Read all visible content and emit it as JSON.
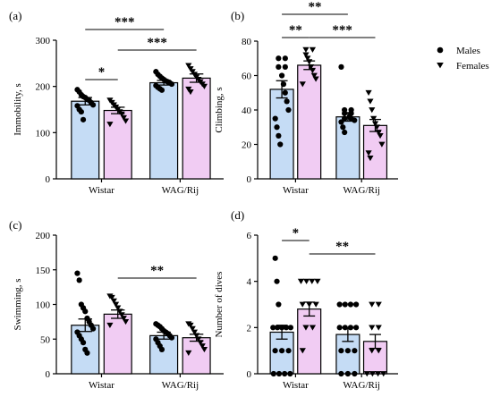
{
  "colors": {
    "male": "#c5dcf5",
    "female": "#f1ccf3",
    "outline": "#000000"
  },
  "legend": [
    {
      "label": "Males",
      "marker": "circle"
    },
    {
      "label": "Females",
      "marker": "triangle-down"
    }
  ],
  "groups": [
    "Wistar",
    "WAG/Rij"
  ],
  "chart_data": [
    {
      "panel": "(a)",
      "type": "bar",
      "ylabel": "Immobility, s",
      "ylim": [
        0,
        300
      ],
      "yticks": [
        0,
        100,
        200,
        300
      ],
      "categories": [
        "Wistar",
        "WAG/Rij"
      ],
      "series": [
        {
          "name": "Males",
          "values": [
            168,
            208
          ],
          "sem": [
            8,
            5
          ]
        },
        {
          "name": "Females",
          "values": [
            148,
            218
          ],
          "sem": [
            7,
            9
          ]
        }
      ],
      "points": {
        "Males": [
          [
            193,
            188,
            182,
            178,
            176,
            172,
            170,
            165,
            160,
            158,
            150,
            145,
            128
          ],
          [
            232,
            226,
            222,
            218,
            215,
            212,
            210,
            208,
            205,
            202,
            198,
            195,
            192
          ]
        ],
        "Females": [
          [
            170,
            165,
            160,
            155,
            150,
            145,
            140,
            132,
            125,
            118
          ],
          [
            245,
            238,
            232,
            226,
            220,
            215,
            210,
            205,
            200,
            194,
            188
          ]
        ]
      },
      "significance": [
        {
          "label": "*",
          "from": [
            0,
            0
          ],
          "to": [
            0,
            1
          ],
          "level": "low"
        },
        {
          "label": "***",
          "from": [
            0,
            0
          ],
          "to": [
            1,
            0
          ],
          "level": "top"
        },
        {
          "label": "***",
          "from": [
            0,
            1
          ],
          "to": [
            1,
            1
          ],
          "level": "mid"
        }
      ]
    },
    {
      "panel": "(b)",
      "type": "bar",
      "ylabel": "Climbing, s",
      "ylim": [
        0,
        80
      ],
      "yticks": [
        0,
        20,
        40,
        60,
        80
      ],
      "categories": [
        "Wistar",
        "WAG/Rij"
      ],
      "series": [
        {
          "name": "Males",
          "values": [
            52,
            36
          ],
          "sem": [
            5,
            2.5
          ]
        },
        {
          "name": "Females",
          "values": [
            66,
            31
          ],
          "sem": [
            2.5,
            3.5
          ]
        }
      ],
      "points": {
        "Males": [
          [
            70,
            70,
            65,
            65,
            60,
            55,
            50,
            45,
            40,
            35,
            30,
            25,
            20
          ],
          [
            65,
            40,
            40,
            38,
            38,
            36,
            35,
            35,
            34,
            33,
            30,
            27
          ]
        ],
        "Females": [
          [
            75,
            75,
            72,
            70,
            68,
            65,
            63,
            60,
            58,
            55
          ],
          [
            50,
            45,
            40,
            35,
            32,
            30,
            27,
            25,
            20,
            15,
            12
          ]
        ]
      },
      "significance": [
        {
          "label": "**",
          "from": [
            0,
            0
          ],
          "to": [
            1,
            0
          ],
          "level": "top"
        },
        {
          "label": "**",
          "from": [
            0,
            0
          ],
          "to": [
            0,
            1
          ],
          "level": "mid"
        },
        {
          "label": "***",
          "from": [
            0,
            1
          ],
          "to": [
            1,
            1
          ],
          "level": "mid"
        }
      ]
    },
    {
      "panel": "(c)",
      "type": "bar",
      "ylabel": "Swimming, s",
      "ylim": [
        0,
        200
      ],
      "yticks": [
        0,
        50,
        100,
        150,
        200
      ],
      "categories": [
        "Wistar",
        "WAG/Rij"
      ],
      "series": [
        {
          "name": "Males",
          "values": [
            70,
            55
          ],
          "sem": [
            9,
            5
          ]
        },
        {
          "name": "Females",
          "values": [
            86,
            52
          ],
          "sem": [
            6,
            5
          ]
        }
      ],
      "points": {
        "Males": [
          [
            145,
            135,
            100,
            95,
            90,
            80,
            75,
            70,
            65,
            60,
            55,
            50,
            45,
            35,
            30
          ],
          [
            72,
            70,
            68,
            65,
            62,
            60,
            58,
            55,
            52,
            50,
            45,
            40,
            35
          ]
        ],
        "Females": [
          [
            112,
            110,
            105,
            100,
            95,
            90,
            85,
            80,
            75,
            70
          ],
          [
            72,
            70,
            65,
            60,
            55,
            50,
            45,
            40,
            35,
            30
          ]
        ]
      },
      "significance": [
        {
          "label": "**",
          "from": [
            0,
            1
          ],
          "to": [
            1,
            1
          ],
          "level": "mid"
        }
      ]
    },
    {
      "panel": "(d)",
      "type": "bar",
      "ylabel": "Number of dives",
      "ylim": [
        0,
        6
      ],
      "yticks": [
        0,
        2,
        4,
        6
      ],
      "categories": [
        "Wistar",
        "WAG/Rij"
      ],
      "series": [
        {
          "name": "Males",
          "values": [
            1.8,
            1.7
          ],
          "sem": [
            0.3,
            0.3
          ]
        },
        {
          "name": "Females",
          "values": [
            2.8,
            1.4
          ],
          "sem": [
            0.3,
            0.3
          ]
        }
      ],
      "points": {
        "Males": [
          [
            5,
            4,
            3,
            2,
            2,
            2,
            2,
            2,
            1,
            1,
            1,
            0,
            0,
            0,
            0
          ],
          [
            3,
            3,
            3,
            3,
            2,
            2,
            2,
            2,
            1,
            1,
            1,
            0,
            0,
            0
          ]
        ],
        "Females": [
          [
            4,
            4,
            4,
            4,
            3,
            3,
            3,
            2,
            2,
            1
          ],
          [
            3,
            3,
            2,
            2,
            1,
            1,
            0,
            0,
            0,
            0
          ]
        ]
      },
      "significance": [
        {
          "label": "*",
          "from": [
            0,
            0
          ],
          "to": [
            0,
            1
          ],
          "level": "mid"
        },
        {
          "label": "**",
          "from": [
            0,
            1
          ],
          "to": [
            1,
            1
          ],
          "level": "low"
        }
      ]
    }
  ]
}
